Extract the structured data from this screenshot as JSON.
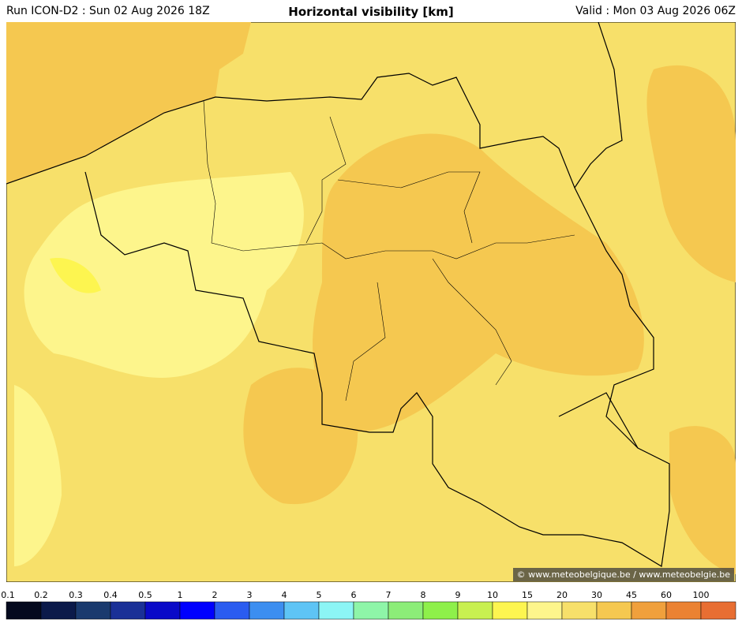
{
  "header": {
    "run": "Run ICON-D2 : Sun 02 Aug 2026 18Z",
    "title": "Horizontal visibility [km]",
    "valid": "Valid : Mon 03 Aug 2026 06Z"
  },
  "attribution": "© www.meteobelgique.be / www.meteobelgie.be",
  "legend": {
    "labels": [
      "0.1",
      "0.2",
      "0.3",
      "0.4",
      "0.5",
      "1",
      "2",
      "3",
      "4",
      "5",
      "6",
      "7",
      "8",
      "9",
      "10",
      "15",
      "20",
      "30",
      "45",
      "60",
      "100"
    ],
    "colors": [
      "#050a1e",
      "#0b1a4a",
      "#1a3a6e",
      "#1a3097",
      "#0a0ac8",
      "#0000ff",
      "#2a5cf0",
      "#3c8ef0",
      "#5ec4f5",
      "#8cf5f5",
      "#8ef5a8",
      "#8ced78",
      "#8ef04a",
      "#c8f050",
      "#fdf550",
      "#fdf58c",
      "#f7e06a",
      "#f5c850",
      "#f0a03c",
      "#eb8232",
      "#e86e32"
    ]
  }
}
